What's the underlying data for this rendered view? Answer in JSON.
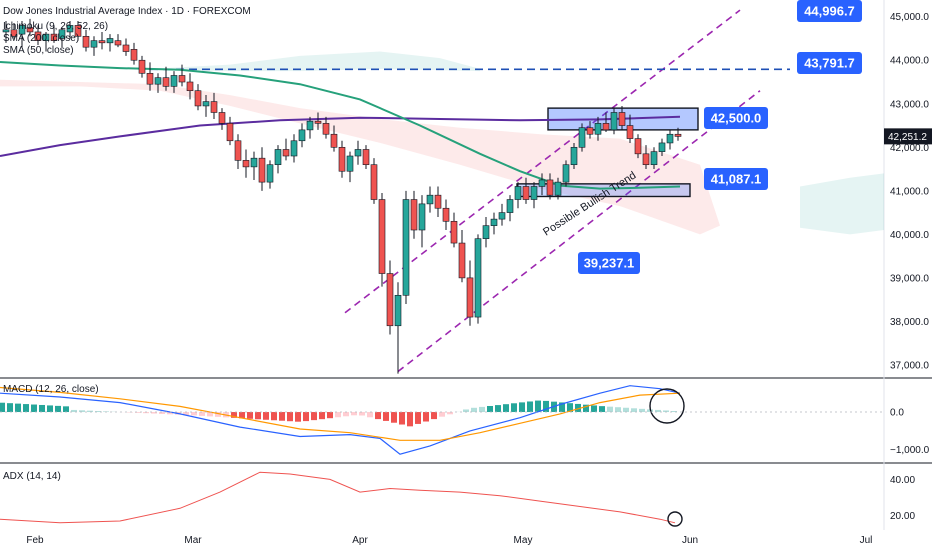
{
  "chart_data": {
    "type": "candlestick",
    "title": "Dow Jones Industrial Average Index · 1D · FOREXCOM",
    "indicators": [
      "Ichimoku (9, 26, 52, 26)",
      "SMA (200, close)",
      "SMA (50, close)"
    ],
    "x_ticks": [
      "Feb",
      "Mar",
      "Apr",
      "May",
      "Jun",
      "Jul"
    ],
    "price_axis": {
      "ticks": [
        "45,000.0",
        "44,000.0",
        "43,000.0",
        "42,000.0",
        "41,000.0",
        "40,000.0",
        "39,000.0",
        "38,000.0",
        "37,000.0"
      ],
      "range": [
        36700,
        45200
      ]
    },
    "last_price": "42,251.2",
    "levels": [
      {
        "name": "resistance-high",
        "value": 44996.7,
        "label": "44,996.7"
      },
      {
        "name": "resistance-dashed",
        "value": 43791.7,
        "label": "43,791.7"
      },
      {
        "name": "resistance-zone",
        "value": 42500.0,
        "label": "42,500.0"
      },
      {
        "name": "support-zone",
        "value": 41087.1,
        "label": "41,087.1"
      },
      {
        "name": "support-low",
        "value": 39237.1,
        "label": "39,237.1"
      }
    ],
    "trend_annotation": "Possible Bullish Trend",
    "colors": {
      "up": "#26a69a",
      "down": "#ef5350",
      "sma200": "#5b2c9f",
      "sma50": "#26a17b",
      "callout": "#2962ff",
      "trend": "#9c27b0"
    },
    "macd": {
      "title": "MACD (12, 26, close)",
      "ticks": [
        "0.0",
        "−1,000.0"
      ],
      "range": [
        -1300,
        850
      ]
    },
    "adx": {
      "title": "ADX (14, 14)",
      "ticks": [
        "40.00",
        "20.00"
      ],
      "range": [
        12,
        48
      ]
    }
  }
}
